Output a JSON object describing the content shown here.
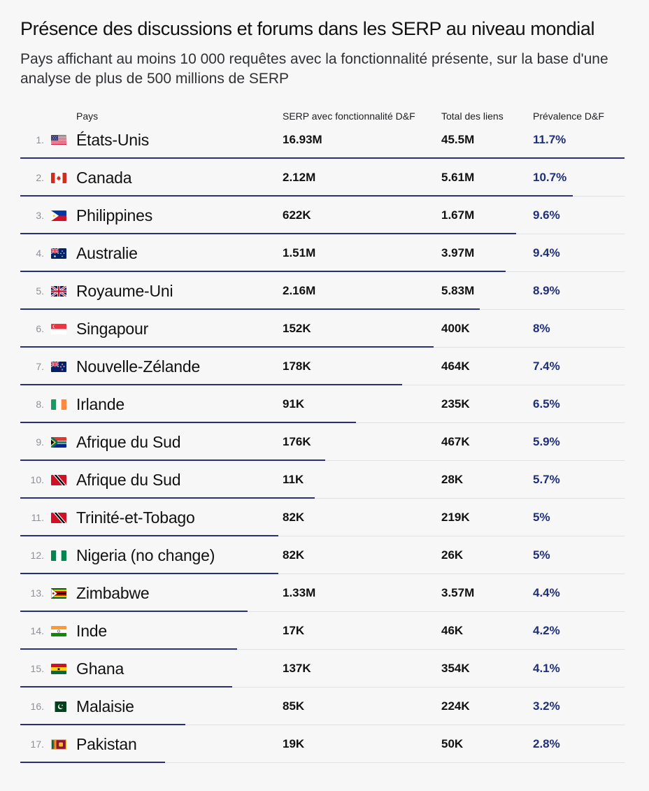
{
  "title": "Présence des discussions et forums dans les SERP au niveau mondial",
  "subtitle": "Pays affichant au moins 10 000 requêtes avec la fonctionnalité présente, sur la base d'une analyse de plus de 500 millions de SERP",
  "chart_data": {
    "type": "table",
    "columns": {
      "country": "Pays",
      "serp": "SERP avec fonctionnalité D&F",
      "total": "Total des liens",
      "prevalence": "Prévalence D&F"
    },
    "rows": [
      {
        "rank": "1.",
        "flag": "us-flag-icon",
        "country": "États-Unis",
        "serp": "16.93M",
        "total": "45.5M",
        "prevalence": "11.7%",
        "prevalence_value": 11.7
      },
      {
        "rank": "2.",
        "flag": "canada-flag-icon",
        "country": "Canada",
        "serp": "2.12M",
        "total": "5.61M",
        "prevalence": "10.7%",
        "prevalence_value": 10.7
      },
      {
        "rank": "3.",
        "flag": "philippines-flag-icon",
        "country": "Philippines",
        "serp": "622K",
        "total": "1.67M",
        "prevalence": "9.6%",
        "prevalence_value": 9.6
      },
      {
        "rank": "4.",
        "flag": "australia-flag-icon",
        "country": "Australie",
        "serp": "1.51M",
        "total": "3.97M",
        "prevalence": "9.4%",
        "prevalence_value": 9.4
      },
      {
        "rank": "5.",
        "flag": "uk-flag-icon",
        "country": "Royaume-Uni",
        "serp": "2.16M",
        "total": "5.83M",
        "prevalence": "8.9%",
        "prevalence_value": 8.9
      },
      {
        "rank": "6.",
        "flag": "singapore-flag-icon",
        "country": "Singapour",
        "serp": "152K",
        "total": "400K",
        "prevalence": "8%",
        "prevalence_value": 8
      },
      {
        "rank": "7.",
        "flag": "new-zealand-flag-icon",
        "country": "Nouvelle-Zélande",
        "serp": "178K",
        "total": "464K",
        "prevalence": "7.4%",
        "prevalence_value": 7.4
      },
      {
        "rank": "8.",
        "flag": "ireland-flag-icon",
        "country": "Irlande",
        "serp": "91K",
        "total": "235K",
        "prevalence": "6.5%",
        "prevalence_value": 6.5
      },
      {
        "rank": "9.",
        "flag": "south-africa-flag-icon",
        "country": "Afrique du Sud",
        "serp": "176K",
        "total": "467K",
        "prevalence": "5.9%",
        "prevalence_value": 5.9
      },
      {
        "rank": "10.",
        "flag": "trinidad-flag-icon",
        "country": "Afrique du Sud",
        "serp": "11K",
        "total": "28K",
        "prevalence": "5.7%",
        "prevalence_value": 5.7
      },
      {
        "rank": "11.",
        "flag": "trinidad-flag-icon",
        "country": "Trinité-et-Tobago",
        "serp": "82K",
        "total": "219K",
        "prevalence": "5%",
        "prevalence_value": 5
      },
      {
        "rank": "12.",
        "flag": "nigeria-flag-icon",
        "country": "Nigeria (no change)",
        "serp": "82K",
        "total": "26K",
        "prevalence": "5%",
        "prevalence_value": 5
      },
      {
        "rank": "13.",
        "flag": "zimbabwe-flag-icon",
        "country": "Zimbabwe",
        "serp": "1.33M",
        "total": "3.57M",
        "prevalence": "4.4%",
        "prevalence_value": 4.4
      },
      {
        "rank": "14.",
        "flag": "india-flag-icon",
        "country": "Inde",
        "serp": "17K",
        "total": "46K",
        "prevalence": "4.2%",
        "prevalence_value": 4.2
      },
      {
        "rank": "15.",
        "flag": "ghana-flag-icon",
        "country": "Ghana",
        "serp": "137K",
        "total": "354K",
        "prevalence": "4.1%",
        "prevalence_value": 4.1
      },
      {
        "rank": "16.",
        "flag": "pakistan-flag-icon",
        "country": "Malaisie",
        "serp": "85K",
        "total": "224K",
        "prevalence": "3.2%",
        "prevalence_value": 3.2
      },
      {
        "rank": "17.",
        "flag": "sri-lanka-flag-icon",
        "country": "Pakistan",
        "serp": "19K",
        "total": "50K",
        "prevalence": "2.8%",
        "prevalence_value": 2.8
      }
    ],
    "bar_max": 11.7,
    "colors": {
      "bar": "#28307a",
      "prevalence_text": "#1f2f7a",
      "separator": "#dfe1e5",
      "background": "#f7f7f8"
    }
  }
}
